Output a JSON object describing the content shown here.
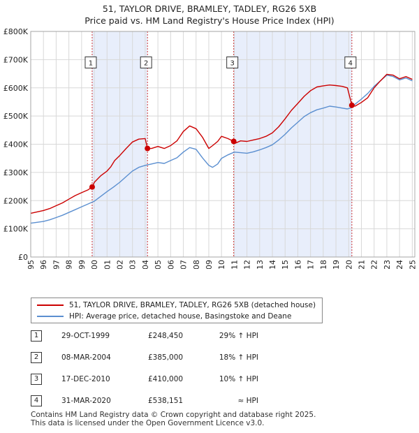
{
  "header": {
    "title_line1": "51, TAYLOR DRIVE, BRAMLEY, TADLEY, RG26 5XB",
    "title_line2": "Price paid vs. HM Land Registry's House Price Index (HPI)"
  },
  "legend": {
    "property_label": "51, TAYLOR DRIVE, BRAMLEY, TADLEY, RG26 5XB (detached house)",
    "hpi_label": "HPI: Average price, detached house, Basingstoke and Deane"
  },
  "colors": {
    "property_line": "#cc0000",
    "hpi_line": "#5b8fd0",
    "highlight_fill": "#e8eefb",
    "vline": "#cc3333",
    "grid": "#d8d8d8"
  },
  "sales": [
    {
      "num": "1",
      "date": "29-OCT-1999",
      "price": "£248,450",
      "hpi": "29% ↑ HPI"
    },
    {
      "num": "2",
      "date": "08-MAR-2004",
      "price": "£385,000",
      "hpi": "18% ↑ HPI"
    },
    {
      "num": "3",
      "date": "17-DEC-2010",
      "price": "£410,000",
      "hpi": "10% ↑ HPI"
    },
    {
      "num": "4",
      "date": "31-MAR-2020",
      "price": "£538,151",
      "hpi": "≈ HPI"
    }
  ],
  "footer": {
    "line1": "Contains HM Land Registry data © Crown copyright and database right 2025.",
    "line2": "This data is licensed under the Open Government Licence v3.0."
  },
  "chart_data": {
    "type": "line",
    "title": "51, TAYLOR DRIVE, BRAMLEY, TADLEY, RG26 5XB",
    "subtitle": "Price paid vs. HM Land Registry's House Price Index (HPI)",
    "xlabel": "",
    "ylabel": "",
    "xlim": [
      1995,
      2025.2
    ],
    "ylim": [
      0,
      800000
    ],
    "yticks": [
      0,
      100000,
      200000,
      300000,
      400000,
      500000,
      600000,
      700000,
      800000
    ],
    "ytick_labels": [
      "£0",
      "£100K",
      "£200K",
      "£300K",
      "£400K",
      "£500K",
      "£600K",
      "£700K",
      "£800K"
    ],
    "xticks": [
      1995,
      1996,
      1997,
      1998,
      1999,
      2000,
      2001,
      2002,
      2003,
      2004,
      2005,
      2006,
      2007,
      2008,
      2009,
      2010,
      2011,
      2012,
      2013,
      2014,
      2015,
      2016,
      2017,
      2018,
      2019,
      2020,
      2021,
      2022,
      2023,
      2024,
      2025
    ],
    "xtick_labels": [
      "1995",
      "1996",
      "1997",
      "1998",
      "1999",
      "2000",
      "2001",
      "2002",
      "2003",
      "2004",
      "2005",
      "2006",
      "2007",
      "2008",
      "2009",
      "2010",
      "2011",
      "2012",
      "2013",
      "2014",
      "2015",
      "2016",
      "2017",
      "2018",
      "2019",
      "2020",
      "2021",
      "2022",
      "2023",
      "2024",
      "2025"
    ],
    "highlight_spans": [
      [
        1999.83,
        2004.18
      ],
      [
        2010.96,
        2020.25
      ]
    ],
    "sale_markers": [
      {
        "label": "1",
        "x": 1999.83,
        "y": 248450
      },
      {
        "label": "2",
        "x": 2004.18,
        "y": 385000
      },
      {
        "label": "3",
        "x": 2010.96,
        "y": 410000
      },
      {
        "label": "4",
        "x": 2020.25,
        "y": 538151
      }
    ],
    "marker_label_y": 690000,
    "series": [
      {
        "name": "51, TAYLOR DRIVE, BRAMLEY, TADLEY, RG26 5XB (detached house)",
        "color": "#cc0000",
        "x": [
          1995.0,
          1995.5,
          1996.0,
          1996.5,
          1997.0,
          1997.5,
          1998.0,
          1998.5,
          1999.0,
          1999.5,
          1999.83,
          2000.0,
          2000.5,
          2001.0,
          2001.3,
          2001.6,
          2002.0,
          2002.5,
          2003.0,
          2003.5,
          2004.0,
          2004.18,
          2004.5,
          2005.0,
          2005.5,
          2006.0,
          2006.5,
          2007.0,
          2007.5,
          2008.0,
          2008.5,
          2009.0,
          2009.3,
          2009.7,
          2010.0,
          2010.5,
          2010.96,
          2011.0,
          2011.5,
          2012.0,
          2012.5,
          2013.0,
          2013.5,
          2014.0,
          2014.5,
          2015.0,
          2015.5,
          2016.0,
          2016.5,
          2017.0,
          2017.5,
          2018.0,
          2018.5,
          2019.0,
          2019.5,
          2019.9,
          2020.25,
          2020.5,
          2021.0,
          2021.5,
          2022.0,
          2022.5,
          2023.0,
          2023.5,
          2024.0,
          2024.5,
          2025.0
        ],
        "y": [
          155000,
          160000,
          165000,
          172000,
          182000,
          192000,
          205000,
          218000,
          228000,
          238000,
          248450,
          265000,
          288000,
          305000,
          320000,
          342000,
          360000,
          385000,
          408000,
          418000,
          420000,
          385000,
          385000,
          392000,
          385000,
          395000,
          412000,
          445000,
          465000,
          455000,
          425000,
          385000,
          395000,
          410000,
          428000,
          420000,
          410000,
          402000,
          412000,
          410000,
          415000,
          420000,
          428000,
          440000,
          462000,
          490000,
          520000,
          545000,
          570000,
          590000,
          603000,
          607000,
          610000,
          608000,
          605000,
          600000,
          538151,
          535000,
          548000,
          565000,
          600000,
          625000,
          648000,
          645000,
          632000,
          640000,
          630000
        ]
      },
      {
        "name": "HPI: Average price, detached house, Basingstoke and Deane",
        "color": "#5b8fd0",
        "x": [
          1995.0,
          1995.5,
          1996.0,
          1996.5,
          1997.0,
          1997.5,
          1998.0,
          1998.5,
          1999.0,
          1999.5,
          2000.0,
          2000.5,
          2001.0,
          2001.5,
          2002.0,
          2002.5,
          2003.0,
          2003.5,
          2004.0,
          2004.5,
          2005.0,
          2005.5,
          2006.0,
          2006.5,
          2007.0,
          2007.5,
          2008.0,
          2008.5,
          2009.0,
          2009.3,
          2009.7,
          2010.0,
          2010.5,
          2011.0,
          2011.5,
          2012.0,
          2012.5,
          2013.0,
          2013.5,
          2014.0,
          2014.5,
          2015.0,
          2015.5,
          2016.0,
          2016.5,
          2017.0,
          2017.5,
          2018.0,
          2018.5,
          2019.0,
          2019.5,
          2019.9,
          2020.25,
          2020.5,
          2021.0,
          2021.5,
          2022.0,
          2022.5,
          2023.0,
          2023.5,
          2024.0,
          2024.5,
          2025.0
        ],
        "y": [
          120000,
          123000,
          126000,
          132000,
          140000,
          148000,
          158000,
          168000,
          178000,
          188000,
          198000,
          215000,
          232000,
          248000,
          265000,
          285000,
          305000,
          318000,
          325000,
          330000,
          335000,
          332000,
          342000,
          352000,
          372000,
          388000,
          382000,
          352000,
          325000,
          318000,
          330000,
          350000,
          362000,
          372000,
          370000,
          368000,
          373000,
          380000,
          388000,
          398000,
          415000,
          435000,
          458000,
          478000,
          498000,
          512000,
          522000,
          528000,
          535000,
          532000,
          528000,
          525000,
          530000,
          542000,
          560000,
          580000,
          605000,
          625000,
          645000,
          640000,
          628000,
          635000,
          625000
        ]
      }
    ]
  }
}
